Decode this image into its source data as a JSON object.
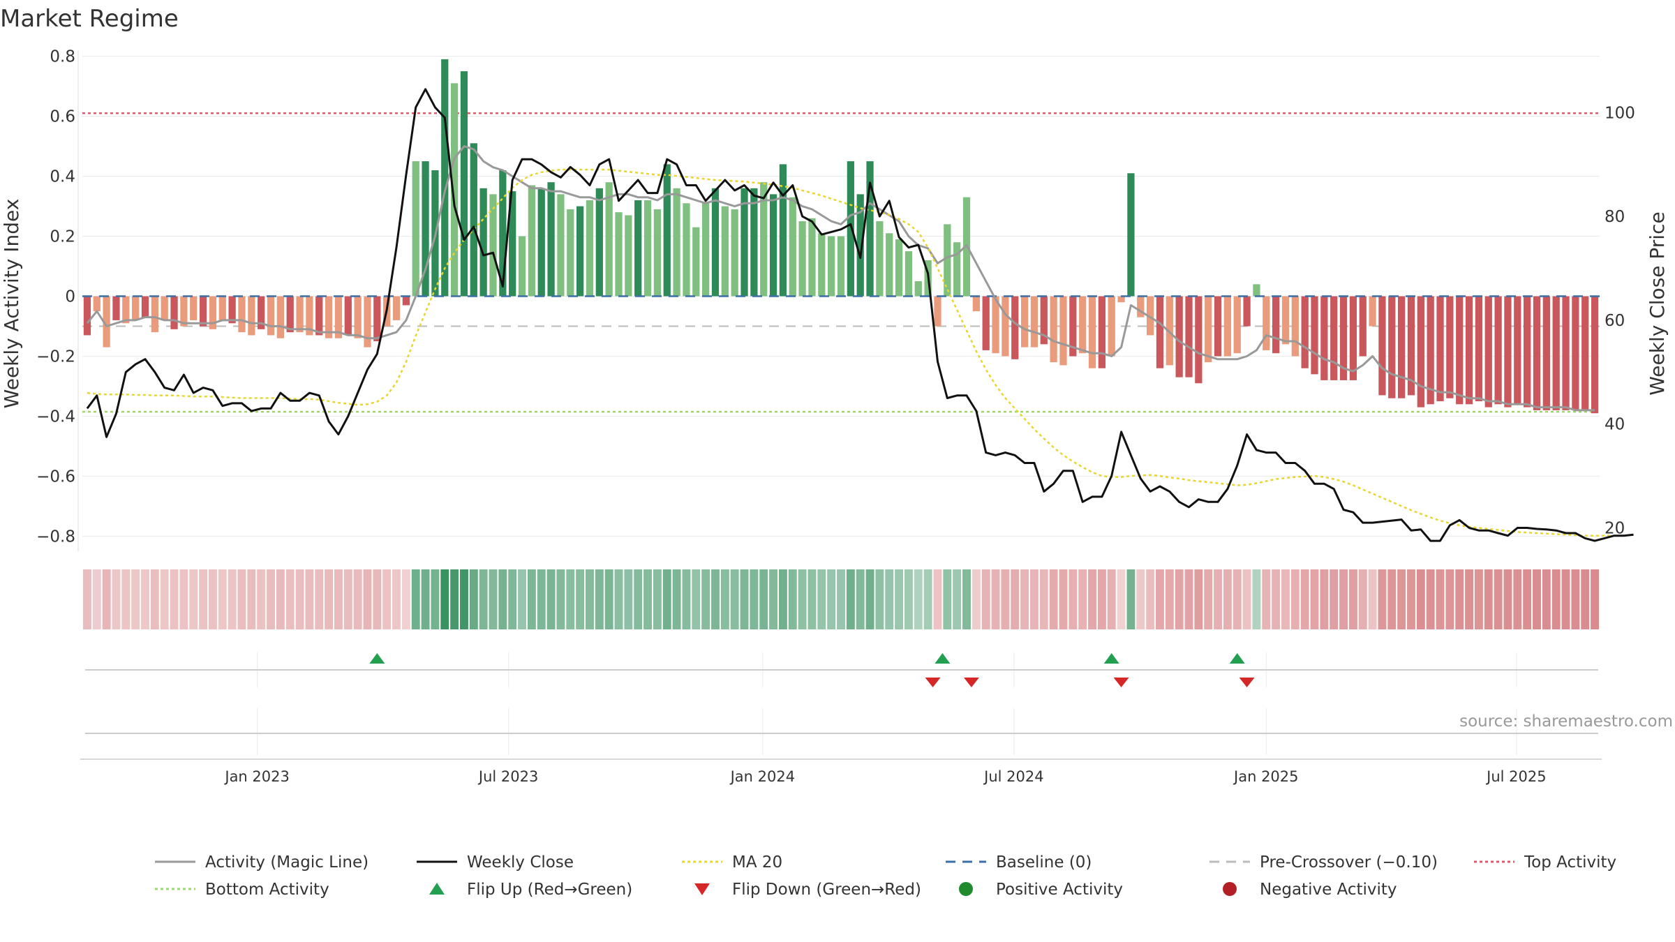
{
  "chart_data": {
    "type": "bar",
    "title": "Market Regime",
    "ylabel": "Weekly Activity Index",
    "y2label": "Weekly Close Price",
    "ylim": [
      -0.85,
      0.82
    ],
    "y2lim": [
      15.5,
      112
    ],
    "yticks": [
      0.8,
      0.6,
      0.4,
      0.2,
      0,
      -0.2,
      -0.4,
      -0.6,
      -0.8
    ],
    "yticklabels": [
      "0.8",
      "0.6",
      "0.4",
      "0.2",
      "0",
      "−0.2",
      "−0.4",
      "−0.6",
      "−0.8"
    ],
    "y2ticks": [
      100,
      80,
      60,
      40,
      20
    ],
    "y2ticklabels": [
      "100",
      "80",
      "60",
      "40",
      "20"
    ],
    "xtick_labels": [
      "Jan 2023",
      "Jul 2023",
      "Jan 2024",
      "Jul 2024",
      "Jan 2025",
      "Jul 2025"
    ],
    "xtick_weeks": [
      17.6,
      43.6,
      69.9,
      95.9,
      122.0,
      147.9
    ],
    "n_weeks": 157,
    "source_text": "source: sharemaestro.com",
    "top_activity": 0.61,
    "bottom_activity": -0.385,
    "baseline": 0,
    "pre_crossover": -0.1,
    "activity": [
      -0.13,
      -0.05,
      -0.17,
      -0.08,
      -0.09,
      -0.08,
      -0.07,
      -0.12,
      -0.08,
      -0.11,
      -0.1,
      -0.08,
      -0.1,
      -0.11,
      -0.08,
      -0.09,
      -0.12,
      -0.13,
      -0.11,
      -0.13,
      -0.14,
      -0.12,
      -0.12,
      -0.13,
      -0.13,
      -0.14,
      -0.14,
      -0.13,
      -0.14,
      -0.17,
      -0.15,
      -0.1,
      -0.08,
      -0.03,
      0.45,
      0.45,
      0.42,
      0.79,
      0.71,
      0.75,
      0.51,
      0.36,
      0.34,
      0.42,
      0.35,
      0.2,
      0.37,
      0.36,
      0.38,
      0.34,
      0.29,
      0.3,
      0.32,
      0.36,
      0.38,
      0.28,
      0.27,
      0.32,
      0.32,
      0.29,
      0.44,
      0.36,
      0.31,
      0.23,
      0.31,
      0.36,
      0.3,
      0.29,
      0.36,
      0.36,
      0.38,
      0.34,
      0.44,
      0.33,
      0.25,
      0.26,
      0.21,
      0.2,
      0.2,
      0.45,
      0.34,
      0.45,
      0.25,
      0.21,
      0.19,
      0.15,
      0.05,
      0.12,
      -0.1,
      0.24,
      0.18,
      0.33,
      -0.05,
      -0.18,
      -0.19,
      -0.2,
      -0.21,
      -0.17,
      -0.17,
      -0.16,
      -0.22,
      -0.23,
      -0.2,
      -0.19,
      -0.24,
      -0.24,
      -0.2,
      -0.02,
      0.41,
      -0.07,
      -0.13,
      -0.24,
      -0.23,
      -0.27,
      -0.27,
      -0.29,
      -0.22,
      -0.2,
      -0.2,
      -0.19,
      -0.1,
      0.04,
      -0.18,
      -0.19,
      -0.16,
      -0.2,
      -0.24,
      -0.26,
      -0.28,
      -0.28,
      -0.28,
      -0.28,
      -0.2,
      -0.1,
      -0.33,
      -0.34,
      -0.34,
      -0.33,
      -0.37,
      -0.36,
      -0.35,
      -0.34,
      -0.36,
      -0.36,
      -0.35,
      -0.37,
      -0.36,
      -0.37,
      -0.36,
      -0.37,
      -0.38,
      -0.38,
      -0.38,
      -0.38,
      -0.38,
      -0.38,
      -0.39
    ],
    "magic_line": [
      -0.09,
      -0.05,
      -0.1,
      -0.09,
      -0.08,
      -0.08,
      -0.07,
      -0.07,
      -0.08,
      -0.08,
      -0.09,
      -0.09,
      -0.09,
      -0.09,
      -0.08,
      -0.08,
      -0.08,
      -0.09,
      -0.09,
      -0.1,
      -0.1,
      -0.11,
      -0.11,
      -0.11,
      -0.12,
      -0.12,
      -0.12,
      -0.13,
      -0.13,
      -0.14,
      -0.14,
      -0.13,
      -0.12,
      -0.08,
      0.0,
      0.09,
      0.2,
      0.35,
      0.46,
      0.5,
      0.49,
      0.45,
      0.43,
      0.42,
      0.4,
      0.38,
      0.36,
      0.36,
      0.35,
      0.35,
      0.34,
      0.33,
      0.33,
      0.32,
      0.33,
      0.34,
      0.34,
      0.33,
      0.33,
      0.32,
      0.34,
      0.34,
      0.33,
      0.32,
      0.31,
      0.32,
      0.31,
      0.3,
      0.31,
      0.31,
      0.32,
      0.32,
      0.33,
      0.32,
      0.3,
      0.29,
      0.27,
      0.25,
      0.24,
      0.27,
      0.28,
      0.31,
      0.29,
      0.27,
      0.25,
      0.2,
      0.17,
      0.16,
      0.11,
      0.13,
      0.14,
      0.17,
      0.11,
      0.05,
      -0.01,
      -0.06,
      -0.09,
      -0.11,
      -0.12,
      -0.13,
      -0.15,
      -0.16,
      -0.17,
      -0.18,
      -0.19,
      -0.19,
      -0.2,
      -0.17,
      -0.03,
      -0.05,
      -0.07,
      -0.09,
      -0.12,
      -0.15,
      -0.17,
      -0.19,
      -0.2,
      -0.21,
      -0.21,
      -0.21,
      -0.2,
      -0.18,
      -0.13,
      -0.14,
      -0.15,
      -0.15,
      -0.17,
      -0.19,
      -0.21,
      -0.22,
      -0.24,
      -0.25,
      -0.23,
      -0.2,
      -0.24,
      -0.26,
      -0.27,
      -0.28,
      -0.3,
      -0.31,
      -0.32,
      -0.32,
      -0.33,
      -0.34,
      -0.34,
      -0.35,
      -0.35,
      -0.36,
      -0.36,
      -0.36,
      -0.37,
      -0.37,
      -0.37,
      -0.37,
      -0.38,
      -0.38,
      -0.38
    ],
    "weekly_close": [
      43,
      45.5,
      37.5,
      42,
      50,
      51.5,
      52.5,
      50,
      47,
      46.5,
      49.5,
      46,
      47,
      46.5,
      43.5,
      44,
      44,
      42.5,
      43,
      43,
      46,
      44.5,
      44.5,
      46,
      45.5,
      40.5,
      38,
      41.5,
      46,
      50.5,
      53.5,
      62,
      74,
      88,
      101,
      104.5,
      101,
      99,
      82,
      75.5,
      78,
      72.5,
      73,
      66.5,
      87,
      91,
      91,
      90,
      88.5,
      87.5,
      89.5,
      88,
      86,
      90,
      91,
      83,
      85,
      87,
      84.5,
      84.5,
      91,
      90,
      86,
      86,
      83,
      85,
      87,
      85,
      86,
      84,
      83.5,
      86.5,
      84,
      86,
      80,
      79,
      76.5,
      77,
      77.5,
      78.5,
      72,
      86.5,
      80,
      83,
      76,
      74,
      74.5,
      69,
      52,
      45,
      45.5,
      45.5,
      42.5,
      34.5,
      34,
      34.5,
      34,
      32.5,
      32.5,
      27,
      28.5,
      31,
      31,
      25,
      26,
      26,
      30,
      38.5,
      34,
      29.5,
      27,
      28,
      27,
      25,
      24,
      25.5,
      25,
      25,
      27.5,
      32,
      38,
      35,
      34.5,
      34.5,
      32.5,
      32.5,
      31,
      28.5,
      28.5,
      27.5,
      23.5,
      23,
      21,
      21,
      21.2,
      21.4,
      21.6,
      19.5,
      19.7,
      17.5,
      17.5,
      20.5,
      21.5,
      20,
      19.5,
      19.5,
      19,
      18.5,
      20,
      20,
      19.8,
      19.7,
      19.5,
      19,
      19,
      18,
      17.5,
      18,
      18.5,
      18.5,
      18.7
    ],
    "ma20": [
      46,
      45.8,
      45.7,
      45.7,
      45.7,
      45.6,
      45.6,
      45.5,
      45.5,
      45.5,
      45.4,
      45.3,
      45.3,
      45.3,
      45.2,
      45.1,
      45,
      45,
      45,
      45,
      45,
      44.9,
      44.8,
      44.8,
      44.7,
      44.4,
      44.1,
      43.9,
      43.7,
      43.8,
      44.3,
      45.5,
      48,
      52,
      57,
      61.5,
      66,
      70,
      73,
      75.5,
      77.5,
      79.5,
      81.5,
      83.5,
      85.5,
      87,
      88,
      88.5,
      88.8,
      89,
      89,
      89,
      89,
      89,
      89,
      88.8,
      88.6,
      88.4,
      88.2,
      88,
      88,
      87.8,
      87.6,
      87.4,
      87.2,
      87,
      86.9,
      86.8,
      86.7,
      86.5,
      86.3,
      86.1,
      85.8,
      85.5,
      85,
      84.5,
      84,
      83.4,
      82.8,
      82.2,
      81.6,
      81.2,
      80.8,
      80.3,
      79.5,
      78.5,
      77,
      74,
      70,
      66,
      62,
      58,
      54,
      50.5,
      47.5,
      45,
      43,
      41,
      39,
      37.2,
      35.5,
      34,
      32.8,
      31.7,
      30.7,
      30,
      29.8,
      29.8,
      30,
      30.1,
      30.2,
      30,
      29.7,
      29.5,
      29.2,
      29,
      28.8,
      28.6,
      28.4,
      28.2,
      28.3,
      28.6,
      29,
      29.4,
      29.6,
      29.8,
      29.9,
      30,
      29.8,
      29.4,
      28.9,
      28.2,
      27.4,
      26.6,
      25.8,
      25,
      24.2,
      23.4,
      22.7,
      22,
      21.4,
      20.9,
      20.5,
      20.2,
      20,
      19.8,
      19.6,
      19.4,
      19.2,
      19.1,
      19,
      18.9,
      18.8,
      18.7,
      18.6,
      18.5,
      18.5,
      18.5,
      18.5
    ],
    "flip_up_weeks": [
      30,
      88.5,
      106,
      119
    ],
    "flip_down_weeks": [
      87.5,
      91.5,
      107,
      120
    ],
    "colors": {
      "strong_green": "#2e8b57",
      "light_green": "#7fbf7f",
      "strong_red": "#c9575b",
      "light_red": "#e99b7c",
      "magic_line": "#999999",
      "weekly_close": "#111111",
      "ma20": "#e8d52e",
      "baseline": "#3a6fa8",
      "pre_crossover": "#bbbbbb",
      "top_activity": "#e05a6e",
      "bottom_activity": "#9fd66b",
      "flip_up": "#22a050",
      "flip_down": "#d62728",
      "positive_dot": "#1f8a2e",
      "negative_dot": "#b22026"
    },
    "legend": [
      {
        "label": "Activity (Magic Line)",
        "kind": "line",
        "key": "magic_line",
        "dash": ""
      },
      {
        "label": "Weekly Close",
        "kind": "line",
        "key": "weekly_close",
        "dash": ""
      },
      {
        "label": "MA 20",
        "kind": "line",
        "key": "ma20",
        "dash": "4 4"
      },
      {
        "label": "Baseline (0)",
        "kind": "line",
        "key": "baseline",
        "dash": "14 10"
      },
      {
        "label": "Pre-Crossover (−0.10)",
        "kind": "line",
        "key": "pre_crossover",
        "dash": "14 10"
      },
      {
        "label": "Top Activity",
        "kind": "line",
        "key": "top_activity",
        "dash": "4 4"
      },
      {
        "label": "Bottom Activity",
        "kind": "line",
        "key": "bottom_activity",
        "dash": "4 4"
      },
      {
        "label": "Flip Up (Red→Green)",
        "kind": "triup",
        "key": "flip_up",
        "dash": ""
      },
      {
        "label": "Flip Down (Green→Red)",
        "kind": "tridown",
        "key": "flip_down",
        "dash": ""
      },
      {
        "label": "Positive Activity",
        "kind": "dot",
        "key": "positive_dot",
        "dash": ""
      },
      {
        "label": "Negative Activity",
        "kind": "dot",
        "key": "negative_dot",
        "dash": ""
      }
    ]
  }
}
